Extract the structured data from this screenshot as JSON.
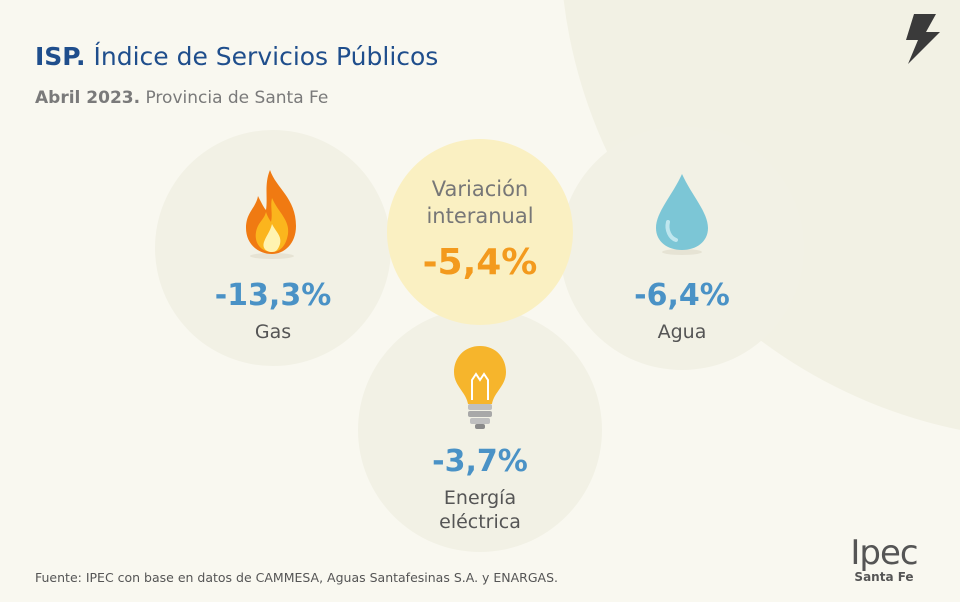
{
  "header": {
    "title_bold": "ISP.",
    "title_rest": "Índice de Servicios Públicos",
    "subtitle_bold": "Abril 2023.",
    "subtitle_rest": "Provincia de Santa Fe"
  },
  "center": {
    "label_line1": "Variación",
    "label_line2": "interanual",
    "value": "-5,4%"
  },
  "services": [
    {
      "name": "Gas",
      "value": "-13,3%",
      "icon": "flame-icon"
    },
    {
      "name": "Agua",
      "value": "-6,4%",
      "icon": "water-drop-icon"
    },
    {
      "name_line1": "Energía",
      "name_line2": "eléctrica",
      "value": "-3,7%",
      "icon": "light-bulb-icon"
    }
  ],
  "footer": {
    "source": "Fuente: IPEC con base en datos de CAMMESA, Aguas Santafesinas S.A. y ENARGAS.",
    "logo_text": "Ipec",
    "logo_sub": "Santa Fe"
  },
  "colors": {
    "title": "#1f4e8c",
    "service_value": "#4a92c6",
    "center_value": "#f39a1d",
    "center_circle": "#faf0c2"
  }
}
